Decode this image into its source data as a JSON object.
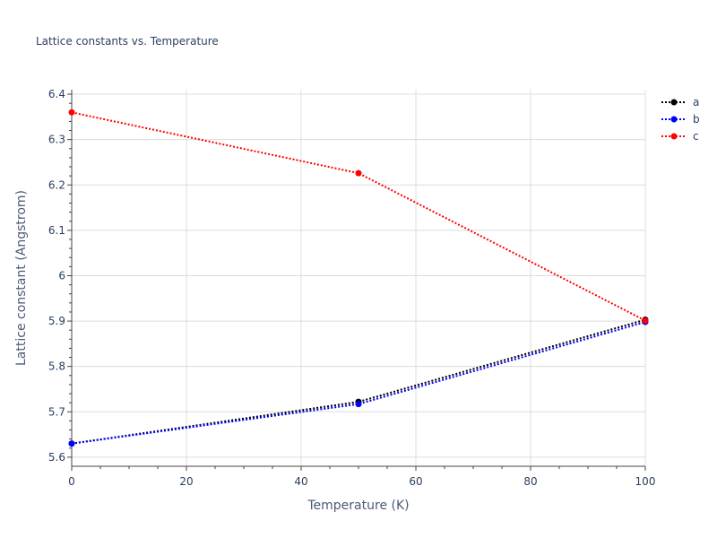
{
  "chart_data": {
    "type": "line",
    "title": "Lattice constants vs. Temperature",
    "xlabel": "Temperature (K)",
    "ylabel": "Lattice constant (Angstrom)",
    "xlim": [
      0,
      100
    ],
    "ylim": [
      5.58,
      6.41
    ],
    "x_ticks": [
      0,
      20,
      40,
      60,
      80,
      100
    ],
    "y_ticks": [
      5.6,
      5.7,
      5.8,
      5.9,
      6,
      6.1,
      6.2,
      6.3,
      6.4
    ],
    "grid": true,
    "legend_position": "top-right",
    "line_style": "dotted",
    "x": [
      0,
      50,
      100
    ],
    "series": [
      {
        "name": "a",
        "color": "#000000",
        "values": [
          5.63,
          5.722,
          5.903
        ]
      },
      {
        "name": "b",
        "color": "#0000ff",
        "values": [
          5.63,
          5.717,
          5.898
        ]
      },
      {
        "name": "c",
        "color": "#ff0000",
        "values": [
          6.36,
          6.226,
          5.901
        ]
      }
    ]
  }
}
